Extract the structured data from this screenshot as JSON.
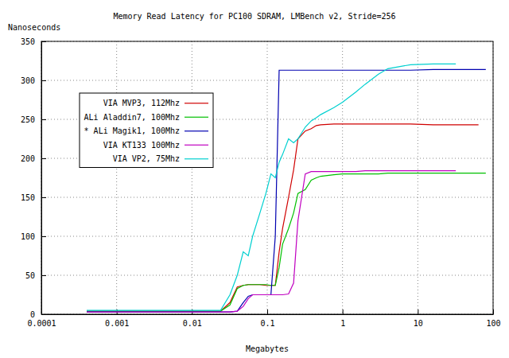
{
  "chart_data": {
    "type": "line",
    "title": "Memory Read Latency for PC100 SDRAM, LMBench v2, Stride=256",
    "y_label": "Nanoseconds",
    "x_label": "Megabytes",
    "log": "x",
    "grid": true,
    "legend": "left",
    "xlim": [
      0.0001,
      100
    ],
    "xticks": [
      0.0001,
      0.001,
      0.01,
      0.1,
      1,
      10,
      100
    ],
    "ylim": [
      0,
      350
    ],
    "yticks": [
      0,
      50,
      100,
      150,
      200,
      250,
      300,
      350
    ],
    "x": [
      0.0004,
      0.001,
      0.002,
      0.004,
      0.008,
      0.016,
      0.024,
      0.032,
      0.04,
      0.048,
      0.056,
      0.064,
      0.08,
      0.096,
      0.112,
      0.128,
      0.144,
      0.16,
      0.192,
      0.224,
      0.256,
      0.32,
      0.384,
      0.448,
      0.512,
      0.768,
      1,
      1.5,
      2,
      3,
      4,
      6,
      8,
      16,
      32,
      64,
      80
    ],
    "series": [
      {
        "name": "VIA MVP3, 112Mhz",
        "color": "#d00000",
        "values": [
          4,
          4,
          4,
          4,
          4,
          4,
          4,
          15,
          35,
          37,
          38,
          38,
          38,
          37,
          37,
          37,
          80,
          110,
          150,
          185,
          225,
          235,
          238,
          242,
          243,
          244,
          244,
          244,
          244,
          244,
          244,
          244,
          244,
          243,
          243,
          243,
          null
        ]
      },
      {
        "name": "ALi Aladdin7, 100Mhz",
        "color": "#00c000",
        "values": [
          4,
          4,
          4,
          4,
          4,
          4,
          4,
          12,
          33,
          37,
          38,
          38,
          38,
          38,
          37,
          37,
          60,
          90,
          110,
          130,
          155,
          160,
          172,
          175,
          177,
          179,
          180,
          180,
          180,
          180,
          181,
          181,
          181,
          181,
          181,
          181,
          181
        ]
      },
      {
        "name": "* ALi Magik1, 100Mhz",
        "color": "#0000b0",
        "values": [
          3,
          3,
          3,
          3,
          3,
          3,
          3,
          3,
          4,
          15,
          23,
          25,
          25,
          25,
          25,
          100,
          313,
          313,
          313,
          313,
          313,
          313,
          313,
          313,
          313,
          313,
          313,
          313,
          313,
          313,
          313,
          313,
          313,
          314,
          314,
          314,
          314
        ]
      },
      {
        "name": "VIA KT133 100Mhz",
        "color": "#c000c0",
        "values": [
          3,
          3,
          3,
          3,
          3,
          3,
          3,
          3,
          4,
          10,
          20,
          25,
          25,
          25,
          25,
          25,
          25,
          25,
          26,
          40,
          120,
          180,
          183,
          183,
          183,
          183,
          183,
          183,
          184,
          184,
          184,
          184,
          184,
          184,
          184,
          null,
          null
        ]
      },
      {
        "name": "VIA VP2, 75Mhz",
        "color": "#00d0d0",
        "values": [
          5,
          5,
          5,
          5,
          5,
          5,
          5,
          25,
          50,
          80,
          75,
          100,
          130,
          155,
          180,
          175,
          195,
          205,
          225,
          220,
          225,
          240,
          248,
          252,
          256,
          265,
          272,
          285,
          295,
          308,
          315,
          318,
          320,
          321,
          321,
          null,
          null
        ]
      }
    ]
  }
}
